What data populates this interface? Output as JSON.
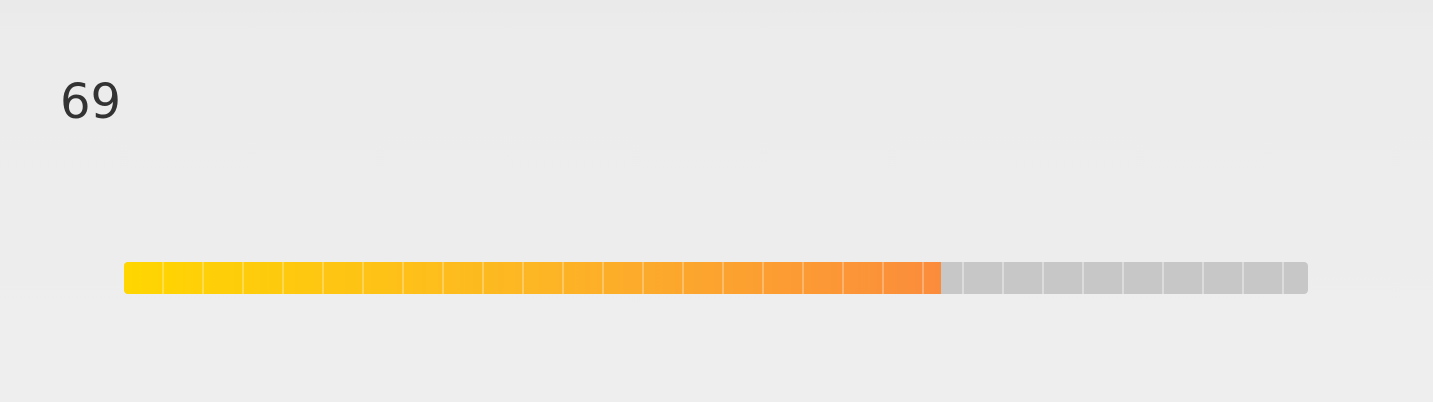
{
  "meter": {
    "value_text": "69",
    "value": 69,
    "max": 100,
    "fill_color_start": "#ffd600",
    "fill_color_end": "#fb8c3c",
    "track_color": "#c7c7c7"
  }
}
